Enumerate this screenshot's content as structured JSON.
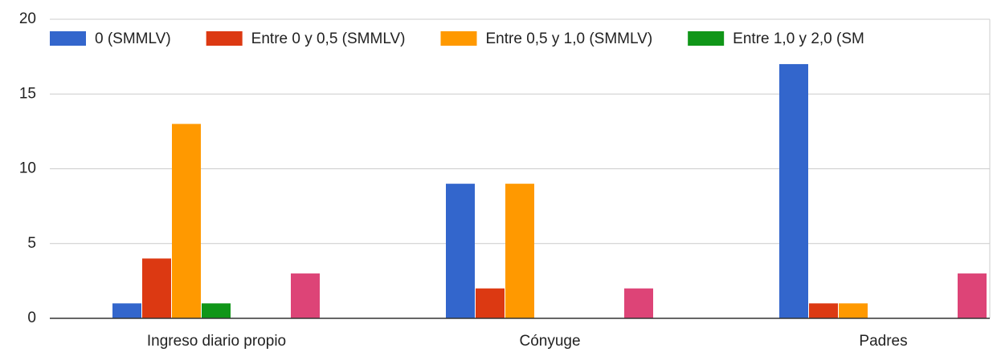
{
  "chart_data": {
    "type": "bar",
    "categories": [
      "Ingreso diario propio",
      "Cónyuge",
      "Padres"
    ],
    "series": [
      {
        "name": "0 (SMMLV)",
        "color": "#3366cc",
        "values": [
          1,
          9,
          17
        ]
      },
      {
        "name": "Entre 0 y 0,5 (SMMLV)",
        "color": "#dc3912",
        "values": [
          4,
          2,
          1
        ]
      },
      {
        "name": "Entre 0,5 y 1,0 (SMMLV)",
        "color": "#ff9900",
        "values": [
          13,
          9,
          1
        ]
      },
      {
        "name": "Entre 1,0 y 2,0 (SM",
        "color": "#109618",
        "values": [
          1,
          0,
          0
        ]
      },
      {
        "name": null,
        "color": "#990099",
        "values": [
          0,
          0,
          0
        ]
      },
      {
        "name": null,
        "color": "#0099c6",
        "values": [
          0,
          0,
          0
        ]
      },
      {
        "name": null,
        "color": "#dd4477",
        "values": [
          3,
          2,
          3
        ]
      }
    ],
    "ylim": [
      0,
      20
    ],
    "yticks": [
      0,
      5,
      10,
      15,
      20
    ],
    "grid": true,
    "legend": "top"
  }
}
